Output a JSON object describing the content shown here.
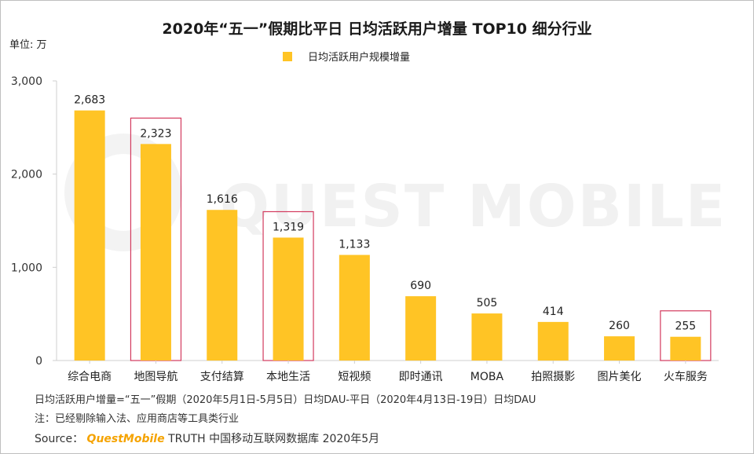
{
  "title": "2020年“五一”假期比平日 日均活跃用户增量 TOP10 细分行业",
  "unit_label": "单位: 万",
  "watermark_text": "QUEST MOBILE",
  "colors": {
    "bar": "#FFC425",
    "highlight_box": "#D33A5E",
    "axis": "#cfcfcf"
  },
  "chart_data": {
    "type": "bar",
    "title": "2020年“五一”假期比平日 日均活跃用户增量 TOP10 细分行业",
    "legend": [
      "日均活跃用户规模增量"
    ],
    "legend_position": "top-center",
    "categories": [
      "综合电商",
      "地图导航",
      "支付结算",
      "本地生活",
      "短视频",
      "即时通讯",
      "MOBA",
      "拍照摄影",
      "图片美化",
      "火车服务"
    ],
    "values": [
      2683,
      2323,
      1616,
      1319,
      1133,
      690,
      505,
      414,
      260,
      255
    ],
    "value_labels": [
      "2,683",
      "2,323",
      "1,616",
      "1,319",
      "1,133",
      "690",
      "505",
      "414",
      "260",
      "255"
    ],
    "highlighted": [
      "地图导航",
      "本地生活",
      "火车服务"
    ],
    "ylim": [
      0,
      3000
    ],
    "yticks": [
      0,
      1000,
      2000,
      3000
    ],
    "ytick_labels": [
      "0",
      "1,000",
      "2,000",
      "3,000"
    ],
    "xlabel": "",
    "ylabel": "单位: 万",
    "grid": false
  },
  "footnotes": {
    "definition": "日均活跃用户增量=“五一”假期（2020年5月1日-5月5日）日均DAU-平日（2020年4月13日-19日）日均DAU",
    "note": "注：已经剔除输入法、应用商店等工具类行业",
    "source_prefix": "Source：",
    "source_brand": "QuestMobile",
    "source_rest": "TRUTH 中国移动互联网数据库 2020年5月"
  }
}
